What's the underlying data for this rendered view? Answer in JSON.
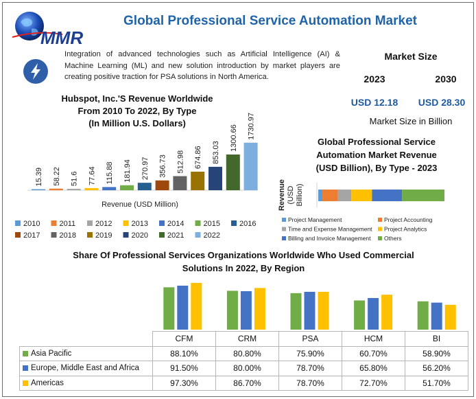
{
  "brand": {
    "logo_text": "MMR"
  },
  "title": "Global Professional Service Automation Market",
  "intro_text": "Integration of advanced technologies such as Artificial Intelligence (AI) & Machine Learning (ML) and new solution introduction by market players are creating positive traction for PSA solutions in North America.",
  "market_size": {
    "title": "Market Size",
    "year_start": "2023",
    "year_end": "2030",
    "value_start": "USD 12.18",
    "value_end": "USD 28.30",
    "unit": "Market Size in Billion"
  },
  "colors": {
    "title_blue": "#1f64a8",
    "value_blue": "#1f5aa0"
  },
  "chart_data": [
    {
      "type": "bar",
      "title": [
        "Hubspot, Inc.'S Revenue Worldwide",
        "From 2010 To 2022, By Type",
        "(In Million U.S. Dollars)"
      ],
      "xlabel": "Revenue (USD Million)",
      "categories": [
        "2010",
        "2011",
        "2012",
        "2013",
        "2014",
        "2015",
        "2016",
        "2017",
        "2018",
        "2019",
        "2020",
        "2021",
        "2022"
      ],
      "values": [
        15.39,
        58.22,
        51.6,
        77.64,
        115.88,
        181.94,
        270.97,
        356.73,
        512.98,
        674.86,
        853.03,
        1300.66,
        1730.97
      ],
      "value_labels": [
        "15.39",
        "58.22",
        "51.6",
        "77.64",
        "115.88",
        "181.94",
        "270.97",
        "356.73",
        "512.98",
        "674.86",
        "853.03",
        "1300.66",
        "1730.97"
      ],
      "colors": [
        "#5b9bd5",
        "#ed7d31",
        "#a5a5a5",
        "#ffc000",
        "#4472c4",
        "#70ad47",
        "#255e91",
        "#9e480e",
        "#636363",
        "#997300",
        "#264478",
        "#43682b",
        "#7cafdd"
      ],
      "ylim": [
        0,
        1800
      ],
      "legend_position": "bottom"
    },
    {
      "type": "bar",
      "orientation": "horizontal-stacked",
      "title": [
        "Global Professional Service",
        "Automation Market Revenue",
        "(USD Billion), By Type - 2023"
      ],
      "ylabel": [
        "Revenue",
        "(USD",
        "Billion)"
      ],
      "series": [
        {
          "name": "Project Management",
          "value": 0.4,
          "color": "#5b9bd5"
        },
        {
          "name": "Project Accounting",
          "value": 1.5,
          "color": "#ed7d31"
        },
        {
          "name": "Time and Expense Management",
          "value": 1.3,
          "color": "#a5a5a5"
        },
        {
          "name": "Project Analytics",
          "value": 2.0,
          "color": "#ffc000"
        },
        {
          "name": "Billing and Invoice Management",
          "value": 2.9,
          "color": "#4472c4"
        },
        {
          "name": "Others",
          "value": 4.1,
          "color": "#70ad47"
        }
      ],
      "legend_position": "bottom"
    },
    {
      "type": "bar",
      "title": [
        "Share Of Professional Services Organizations Worldwide Who Used Commercial",
        "Solutions In 2022, By Region"
      ],
      "categories": [
        "CFM",
        "CRM",
        "PSA",
        "HCM",
        "BI"
      ],
      "series": [
        {
          "name": "Asia Pacific",
          "values": [
            88.1,
            80.8,
            75.9,
            60.7,
            58.9
          ],
          "labels": [
            "88.10%",
            "80.80%",
            "75.90%",
            "60.70%",
            "58.90%"
          ],
          "color": "#70ad47"
        },
        {
          "name": "Europe, Middle East and Africa",
          "values": [
            91.5,
            80.0,
            78.7,
            65.8,
            56.2
          ],
          "labels": [
            "91.50%",
            "80.00%",
            "78.70%",
            "65.80%",
            "56.20%"
          ],
          "color": "#4472c4"
        },
        {
          "name": "Americas",
          "values": [
            97.3,
            86.7,
            78.7,
            72.7,
            51.7
          ],
          "labels": [
            "97.30%",
            "86.70%",
            "78.70%",
            "72.70%",
            "51.70%"
          ],
          "color": "#ffc000"
        }
      ],
      "ylim": [
        0,
        100
      ],
      "legend_position": "table"
    }
  ]
}
